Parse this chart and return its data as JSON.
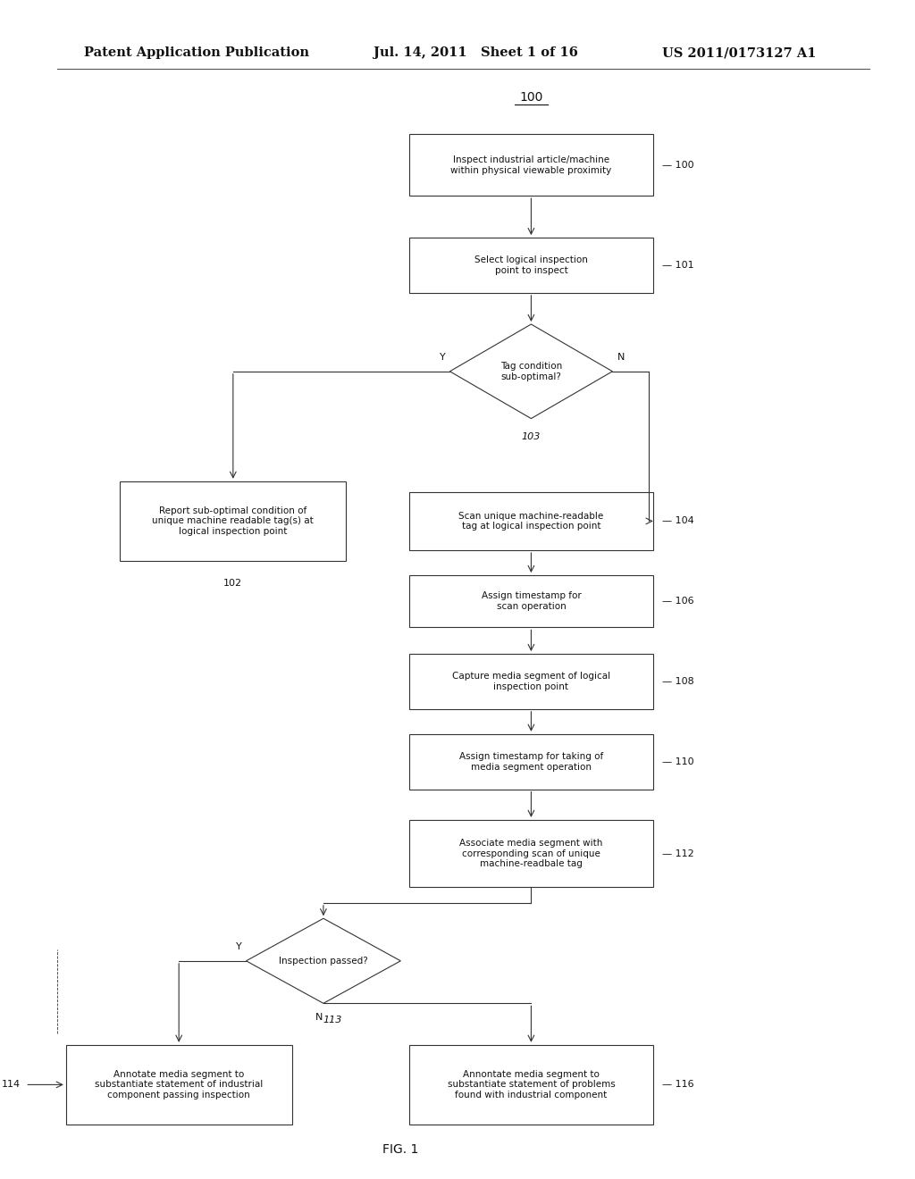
{
  "bg_color": "#ffffff",
  "header_left": "Patent Application Publication",
  "header_mid": "Jul. 14, 2011   Sheet 1 of 16",
  "header_right": "US 2011/0173127 A1",
  "fig_label": "FIG. 1",
  "line_color": "#333333",
  "box_fill": "#ffffff",
  "box_edge": "#333333",
  "font_size_header": 10.5,
  "font_size_box": 7.5,
  "font_size_tag": 8,
  "diagram_top_label": "100"
}
